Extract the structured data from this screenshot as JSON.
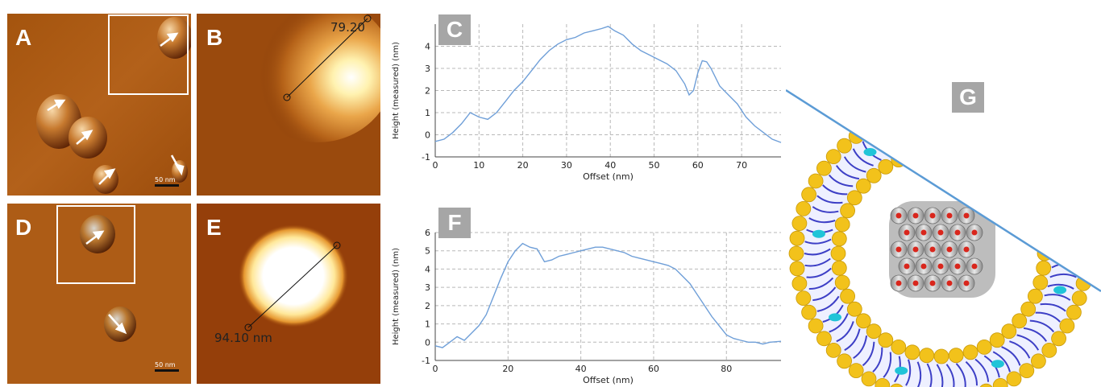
{
  "panels": {
    "A": {
      "letter": "A",
      "scale_bar": "50 nm"
    },
    "B": {
      "letter": "B",
      "measure_label": "79.20"
    },
    "C": {
      "letter": "C"
    },
    "D": {
      "letter": "D",
      "scale_bar": "50 nm"
    },
    "E": {
      "letter": "E",
      "measure_label": "94.10 nm"
    },
    "F": {
      "letter": "F"
    },
    "G": {
      "letter": "G"
    }
  },
  "colors": {
    "line": "#6f9fd8",
    "grid": "#b8b8b8",
    "afm_dark": "#6b2a05",
    "afm_mid": "#b05e13",
    "lipid_head": "#f2c21b",
    "lipid_tail": "#3d3fc6",
    "cargo": "#20c4d8",
    "membrane_line": "#5b9bd5"
  },
  "chart_data": [
    {
      "type": "line",
      "panel": "C",
      "xlabel": "Offset (nm)",
      "ylabel": "Height (measured) (nm)",
      "xlim": [
        0,
        79
      ],
      "ylim": [
        -1,
        5
      ],
      "xticks": [
        0,
        10,
        20,
        30,
        40,
        50,
        60,
        70
      ],
      "yticks": [
        -1,
        0,
        1,
        2,
        3,
        4
      ],
      "grid": true,
      "x": [
        0,
        2,
        4,
        6,
        8,
        10,
        12,
        14,
        16,
        18,
        20,
        22,
        24,
        26,
        28,
        30,
        32,
        34,
        36,
        38,
        39.5,
        41,
        43,
        45,
        47,
        49,
        51,
        53,
        55,
        57,
        58,
        59,
        60,
        61,
        62,
        63,
        65,
        67,
        69,
        71,
        73,
        75,
        77,
        79
      ],
      "y": [
        -0.3,
        -0.2,
        0.1,
        0.5,
        1.0,
        0.8,
        0.7,
        1.0,
        1.5,
        2.0,
        2.4,
        2.9,
        3.4,
        3.8,
        4.1,
        4.3,
        4.4,
        4.6,
        4.7,
        4.8,
        4.9,
        4.7,
        4.5,
        4.1,
        3.8,
        3.6,
        3.4,
        3.2,
        2.9,
        2.3,
        1.8,
        2.0,
        2.8,
        3.35,
        3.3,
        3.0,
        2.2,
        1.8,
        1.4,
        0.8,
        0.4,
        0.1,
        -0.2,
        -0.35
      ]
    },
    {
      "type": "line",
      "panel": "F",
      "xlabel": "Offset (nm)",
      "ylabel": "Height (measured) (nm)",
      "xlim": [
        0,
        95
      ],
      "ylim": [
        -1,
        6
      ],
      "xticks": [
        0,
        20,
        40,
        60,
        80
      ],
      "yticks": [
        -1,
        0,
        1,
        2,
        3,
        4,
        5,
        6
      ],
      "grid": true,
      "x": [
        0,
        2,
        4,
        6,
        8,
        10,
        12,
        14,
        16,
        18,
        20,
        22,
        24,
        26,
        28,
        30,
        32,
        34,
        36,
        38,
        40,
        42,
        44,
        46,
        48,
        50,
        52,
        54,
        56,
        58,
        60,
        62,
        64,
        66,
        68,
        70,
        72,
        74,
        76,
        78,
        80,
        82,
        84,
        86,
        88,
        90,
        92,
        95
      ],
      "y": [
        -0.2,
        -0.3,
        0.0,
        0.3,
        0.1,
        0.5,
        0.9,
        1.5,
        2.5,
        3.5,
        4.4,
        5.0,
        5.4,
        5.2,
        5.1,
        4.4,
        4.5,
        4.7,
        4.8,
        4.9,
        5.0,
        5.1,
        5.2,
        5.2,
        5.1,
        5.0,
        4.9,
        4.7,
        4.6,
        4.5,
        4.4,
        4.3,
        4.2,
        4.0,
        3.6,
        3.2,
        2.6,
        2.0,
        1.4,
        0.9,
        0.4,
        0.2,
        0.1,
        0.0,
        0.0,
        -0.1,
        0.0,
        0.05
      ]
    }
  ]
}
